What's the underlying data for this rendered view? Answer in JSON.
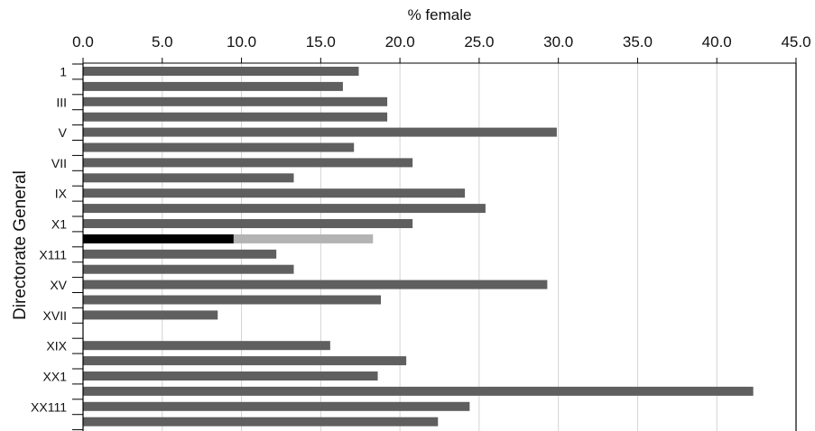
{
  "chart_data": {
    "type": "bar",
    "orientation": "horizontal",
    "title": "",
    "xlabel": "% female",
    "ylabel": "Directorate General",
    "xlim": [
      0,
      45
    ],
    "xticks": [
      "0.0",
      "5.0",
      "10.0",
      "15.0",
      "20.0",
      "25.0",
      "30.0",
      "35.0",
      "40.0",
      "45.0"
    ],
    "grid": "vertical",
    "legend": "none",
    "categories": [
      "1",
      "",
      "III",
      "",
      "V",
      "",
      "VII",
      "",
      "IX",
      "",
      "X1",
      "",
      "X111",
      "",
      "XV",
      "",
      "XVII",
      "",
      "XIX",
      "",
      "XX1",
      "",
      "XX111",
      ""
    ],
    "values": [
      17.4,
      16.4,
      19.2,
      19.2,
      29.9,
      17.1,
      20.8,
      13.3,
      24.1,
      25.4,
      20.8,
      18.3,
      12.2,
      13.3,
      29.3,
      18.8,
      8.5,
      null,
      15.6,
      20.4,
      18.6,
      42.3,
      24.4,
      22.4
    ],
    "highlight": {
      "category_index": 11,
      "dark_value": 9.5,
      "light_value": 18.3
    },
    "colors": {
      "bar": "#5f5f5f",
      "highlight_dark": "#000000",
      "highlight_light": "#b3b3b3",
      "grid": "#d3d3d3",
      "axis": "#000000"
    }
  }
}
